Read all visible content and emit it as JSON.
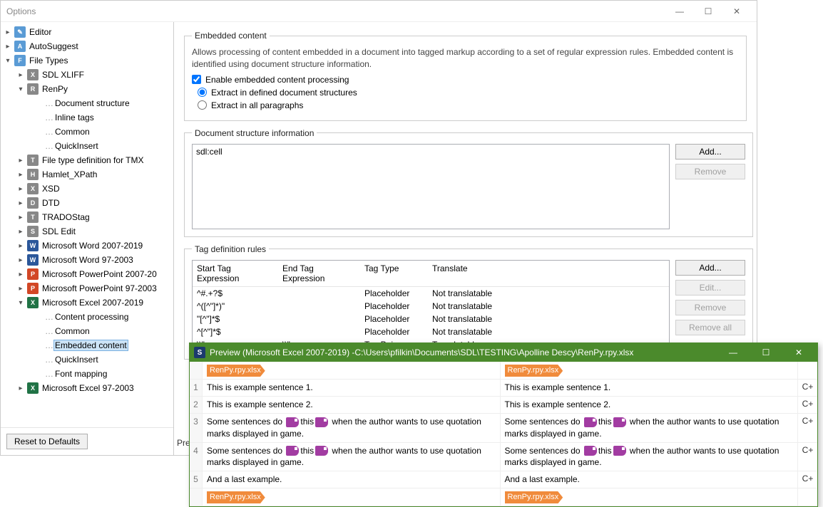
{
  "window": {
    "title": "Options"
  },
  "titlebar_buttons": {
    "min": "—",
    "max": "☐",
    "close": "✕"
  },
  "tree": {
    "reset_label": "Reset to Defaults",
    "items": [
      {
        "label": "Editor",
        "expand": "▸",
        "ind": 0,
        "icon": "ic-editor",
        "glyph": "✎"
      },
      {
        "label": "AutoSuggest",
        "expand": "▸",
        "ind": 0,
        "icon": "ic-auto",
        "glyph": "A"
      },
      {
        "label": "File Types",
        "expand": "▾",
        "ind": 0,
        "icon": "ic-ft",
        "glyph": "F"
      },
      {
        "label": "SDL XLIFF",
        "expand": "▸",
        "ind": 1,
        "icon": "ic-xliff",
        "glyph": "X"
      },
      {
        "label": "RenPy",
        "expand": "▾",
        "ind": 1,
        "icon": "ic-renpy",
        "glyph": "R"
      },
      {
        "label": "Document structure",
        "expand": "",
        "ind": 2,
        "icon": "",
        "glyph": ""
      },
      {
        "label": "Inline tags",
        "expand": "",
        "ind": 2,
        "icon": "",
        "glyph": ""
      },
      {
        "label": "Common",
        "expand": "",
        "ind": 2,
        "icon": "",
        "glyph": ""
      },
      {
        "label": "QuickInsert",
        "expand": "",
        "ind": 2,
        "icon": "",
        "glyph": ""
      },
      {
        "label": "File type definition for TMX",
        "expand": "▸",
        "ind": 1,
        "icon": "ic-tmx",
        "glyph": "T"
      },
      {
        "label": "Hamlet_XPath",
        "expand": "▸",
        "ind": 1,
        "icon": "ic-hamlet",
        "glyph": "H"
      },
      {
        "label": "XSD",
        "expand": "▸",
        "ind": 1,
        "icon": "ic-xsd",
        "glyph": "X"
      },
      {
        "label": "DTD",
        "expand": "▸",
        "ind": 1,
        "icon": "ic-dtd",
        "glyph": "D"
      },
      {
        "label": "TRADOStag",
        "expand": "▸",
        "ind": 1,
        "icon": "ic-tag",
        "glyph": "T"
      },
      {
        "label": "SDL Edit",
        "expand": "▸",
        "ind": 1,
        "icon": "ic-sedit",
        "glyph": "S"
      },
      {
        "label": "Microsoft Word 2007-2019",
        "expand": "▸",
        "ind": 1,
        "icon": "ic-word",
        "glyph": "W"
      },
      {
        "label": "Microsoft Word 97-2003",
        "expand": "▸",
        "ind": 1,
        "icon": "ic-word",
        "glyph": "W"
      },
      {
        "label": "Microsoft PowerPoint 2007-20",
        "expand": "▸",
        "ind": 1,
        "icon": "ic-ppt",
        "glyph": "P"
      },
      {
        "label": "Microsoft PowerPoint 97-2003",
        "expand": "▸",
        "ind": 1,
        "icon": "ic-ppt",
        "glyph": "P"
      },
      {
        "label": "Microsoft Excel 2007-2019",
        "expand": "▾",
        "ind": 1,
        "icon": "ic-xls",
        "glyph": "X"
      },
      {
        "label": "Content processing",
        "expand": "",
        "ind": 2,
        "icon": "",
        "glyph": ""
      },
      {
        "label": "Common",
        "expand": "",
        "ind": 2,
        "icon": "",
        "glyph": ""
      },
      {
        "label": "Embedded content",
        "expand": "",
        "ind": 2,
        "icon": "",
        "glyph": "",
        "selected": true
      },
      {
        "label": "QuickInsert",
        "expand": "",
        "ind": 2,
        "icon": "",
        "glyph": ""
      },
      {
        "label": "Font mapping",
        "expand": "",
        "ind": 2,
        "icon": "",
        "glyph": ""
      },
      {
        "label": "Microsoft Excel 97-2003",
        "expand": "▸",
        "ind": 1,
        "icon": "ic-xls",
        "glyph": "X"
      }
    ]
  },
  "embedded": {
    "legend": "Embedded content",
    "desc": "Allows processing of content embedded in a document into tagged markup according to a set of regular expression rules. Embedded content is identified using document structure information.",
    "enable_label": "Enable embedded content processing",
    "radio1": "Extract in defined document structures",
    "radio2": "Extract in all paragraphs"
  },
  "docstruct": {
    "legend": "Document structure information",
    "item0": "sdl:cell",
    "add": "Add...",
    "remove": "Remove"
  },
  "tagrules": {
    "legend": "Tag definition rules",
    "col_start": "Start Tag Expression",
    "col_end": "End Tag Expression",
    "col_type": "Tag Type",
    "col_trans": "Translate",
    "rows": [
      {
        "st": "^#.+?$",
        "et": "",
        "tt": "Placeholder",
        "tr": "Not translatable"
      },
      {
        "st": "^([^\"]*)\"",
        "et": "",
        "tt": "Placeholder",
        "tr": "Not translatable"
      },
      {
        "st": "\"[^\"]*$",
        "et": "",
        "tt": "Placeholder",
        "tr": "Not translatable"
      },
      {
        "st": "^[^\"]*$",
        "et": "",
        "tt": "Placeholder",
        "tr": "Not translatable"
      },
      {
        "st": "\\\\\"",
        "et": "\\\\\"",
        "tt": "Tag Pair",
        "tr": "Translatable"
      }
    ],
    "add": "Add...",
    "edit": "Edit...",
    "remove": "Remove",
    "remove_all": "Remove all"
  },
  "preview_cut": "Pre",
  "preview": {
    "title": "Preview (Microsoft Excel 2007-2019) -C:\\Users\\pfilkin\\Documents\\SDL\\TESTING\\Apolline Descy\\RenPy.rpy.xlsx",
    "filetag": "RenPy.rpy.xlsx",
    "mark": "C+",
    "rows": [
      {
        "n": "1",
        "l": "This is example sentence 1.",
        "r": "This is example sentence 1."
      },
      {
        "n": "2",
        "l": "This is example sentence 2.",
        "r": "This is example sentence 2."
      },
      {
        "n": "3",
        "l": "Some sentences do ▮this▮ when the author wants to use quotation marks displayed in game.",
        "r": "Some sentences do ▮this▮ when the author wants to use quotation marks displayed in game."
      },
      {
        "n": "4",
        "l": "Some sentences do ▮this▮ when the author wants to use quotation marks displayed in game.",
        "r": "Some sentences do ▮this▮ when the author wants to use quotation marks displayed in game."
      },
      {
        "n": "5",
        "l": "And a last example.",
        "r": "And a last example."
      }
    ]
  }
}
